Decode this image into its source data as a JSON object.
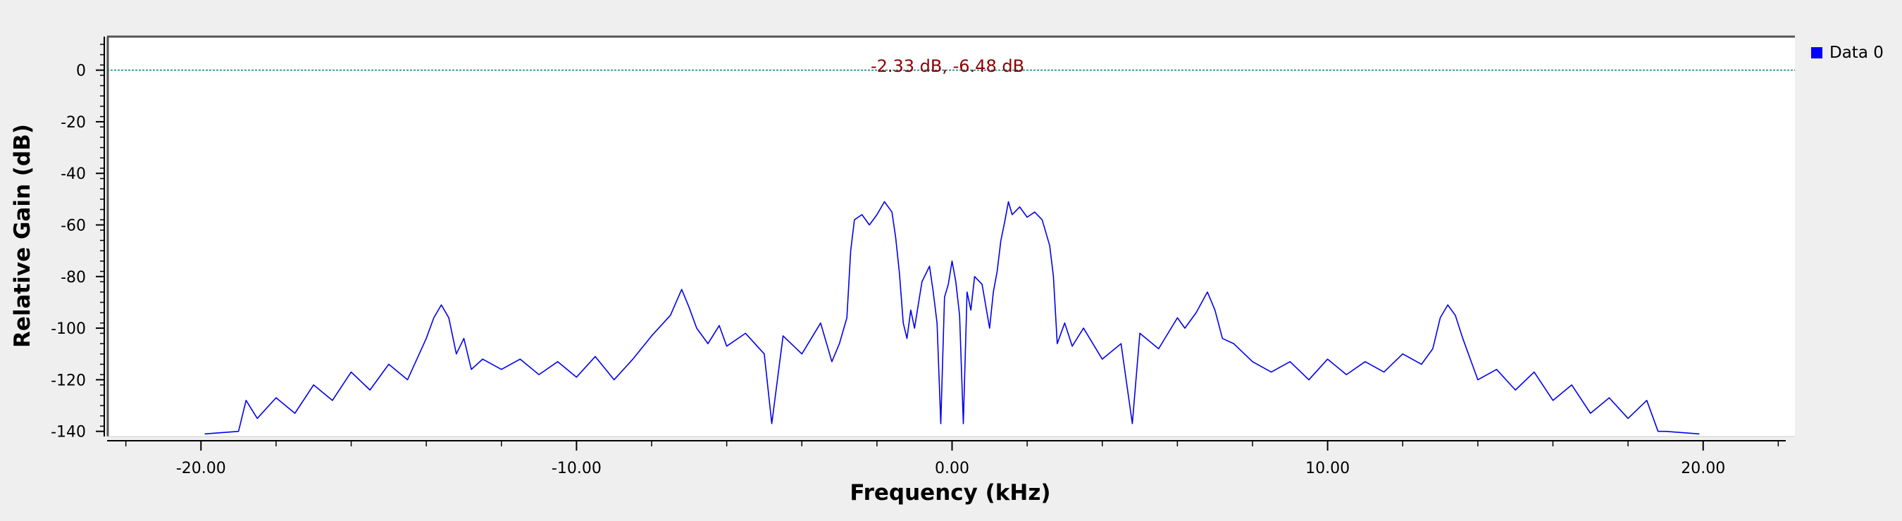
{
  "colors": {
    "background": "#efefef",
    "plot_background": "#ffffff",
    "trace": "#0000ee",
    "marker_line": "#008080",
    "marker_text": "#8b0000",
    "legend_swatch": "#0000ff"
  },
  "marker": {
    "label": "-2.33 dB, -6.48 dB",
    "level_db": 0
  },
  "legend": {
    "items": [
      {
        "label": "Data 0",
        "color": "#0000ff"
      }
    ]
  },
  "chart_data": {
    "type": "line",
    "xlabel": "Frequency (kHz)",
    "ylabel": "Relative Gain (dB)",
    "xlim": [
      -22.5,
      22.2
    ],
    "ylim": [
      -142,
      13
    ],
    "x_ticks": [
      -20,
      -10,
      0,
      10,
      20
    ],
    "x_tick_labels": [
      "-20.00",
      "-10.00",
      "0.00",
      "10.00",
      "20.00"
    ],
    "y_ticks": [
      0,
      -20,
      -40,
      -60,
      -80,
      -100,
      -120,
      -140
    ],
    "y_tick_labels": [
      "0",
      "-20",
      "-40",
      "-60",
      "-80",
      "-100",
      "-120",
      "-140"
    ],
    "grid": false,
    "legend_position": "top-right",
    "series": [
      {
        "name": "Data 0",
        "color": "#0000ee",
        "x": [
          -19.9,
          -19.0,
          -18.8,
          -18.5,
          -18.0,
          -17.5,
          -17.0,
          -16.5,
          -16.0,
          -15.5,
          -15.0,
          -14.5,
          -14.0,
          -13.8,
          -13.6,
          -13.4,
          -13.2,
          -13.0,
          -12.8,
          -12.5,
          -12.0,
          -11.5,
          -11.0,
          -10.5,
          -10.0,
          -9.5,
          -9.0,
          -8.5,
          -8.0,
          -7.5,
          -7.2,
          -7.0,
          -6.8,
          -6.5,
          -6.2,
          -6.0,
          -5.5,
          -5.0,
          -4.8,
          -4.5,
          -4.0,
          -3.5,
          -3.2,
          -3.0,
          -2.8,
          -2.7,
          -2.6,
          -2.4,
          -2.2,
          -2.0,
          -1.8,
          -1.6,
          -1.5,
          -1.4,
          -1.3,
          -1.2,
          -1.1,
          -1.0,
          -0.8,
          -0.6,
          -0.5,
          -0.4,
          -0.3,
          -0.2,
          -0.1,
          0.0,
          0.1,
          0.2,
          0.3,
          0.4,
          0.5,
          0.6,
          0.8,
          1.0,
          1.1,
          1.2,
          1.3,
          1.4,
          1.5,
          1.6,
          1.8,
          2.0,
          2.2,
          2.4,
          2.6,
          2.7,
          2.8,
          3.0,
          3.2,
          3.5,
          4.0,
          4.5,
          4.8,
          5.0,
          5.5,
          6.0,
          6.2,
          6.5,
          6.8,
          7.0,
          7.2,
          7.5,
          8.0,
          8.5,
          9.0,
          9.5,
          10.0,
          10.5,
          11.0,
          11.5,
          12.0,
          12.5,
          12.8,
          13.0,
          13.2,
          13.4,
          13.6,
          13.8,
          14.0,
          14.5,
          15.0,
          15.5,
          16.0,
          16.5,
          17.0,
          17.5,
          18.0,
          18.5,
          18.8,
          19.0,
          19.9
        ],
        "y": [
          -141,
          -140,
          -128,
          -135,
          -127,
          -133,
          -122,
          -128,
          -117,
          -124,
          -114,
          -120,
          -104,
          -96,
          -91,
          -96,
          -110,
          -104,
          -116,
          -112,
          -116,
          -112,
          -118,
          -113,
          -119,
          -111,
          -120,
          -112,
          -103,
          -95,
          -85,
          -92,
          -100,
          -106,
          -99,
          -107,
          -102,
          -110,
          -137,
          -103,
          -110,
          -98,
          -113,
          -106,
          -96,
          -70,
          -58,
          -56,
          -60,
          -56,
          -51,
          -55,
          -65,
          -79,
          -98,
          -104,
          -93,
          -100,
          -82,
          -76,
          -86,
          -98,
          -137,
          -88,
          -83,
          -74,
          -82,
          -95,
          -137,
          -86,
          -93,
          -80,
          -83,
          -100,
          -86,
          -78,
          -66,
          -59,
          -51,
          -56,
          -53,
          -57,
          -55,
          -58,
          -68,
          -80,
          -106,
          -98,
          -107,
          -100,
          -112,
          -106,
          -137,
          -102,
          -108,
          -96,
          -100,
          -94,
          -86,
          -93,
          -104,
          -106,
          -113,
          -117,
          -113,
          -120,
          -112,
          -118,
          -113,
          -117,
          -110,
          -114,
          -108,
          -96,
          -91,
          -95,
          -104,
          -112,
          -120,
          -116,
          -124,
          -117,
          -128,
          -122,
          -133,
          -127,
          -135,
          -128,
          -140,
          -140,
          -141
        ]
      }
    ]
  }
}
